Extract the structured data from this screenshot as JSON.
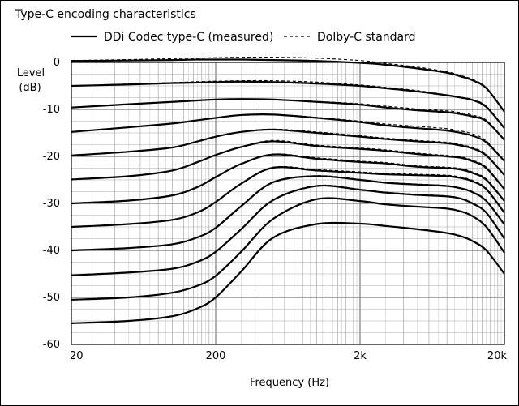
{
  "chart_data": {
    "type": "line",
    "title": "Type-C encoding characteristics",
    "xlabel": "Frequency (Hz)",
    "ylabel": [
      "Level",
      "(dB)"
    ],
    "x_scale": "log",
    "xlim": [
      20,
      20000
    ],
    "ylim": [
      -60,
      0
    ],
    "grid": true,
    "legend_placement": "top",
    "x_ticks": [
      {
        "value": 20,
        "label": "20"
      },
      {
        "value": 200,
        "label": "200"
      },
      {
        "value": 2000,
        "label": "2k"
      },
      {
        "value": 20000,
        "label": "20k"
      }
    ],
    "y_ticks": [
      {
        "value": 0,
        "label": "0"
      },
      {
        "value": -10,
        "label": "-10"
      },
      {
        "value": -20,
        "label": "-20"
      },
      {
        "value": -30,
        "label": "-30"
      },
      {
        "value": -40,
        "label": "-40"
      },
      {
        "value": -50,
        "label": "-50"
      },
      {
        "value": -60,
        "label": "-60"
      }
    ],
    "legend": [
      {
        "label": "DDi Codec type-C (measured)",
        "style": "solid"
      },
      {
        "label": "Dolby-C standard",
        "style": "dashed"
      }
    ],
    "x": [
      20,
      50,
      100,
      150,
      200,
      300,
      500,
      1000,
      2000,
      3000,
      5000,
      8000,
      10000,
      12000,
      15000,
      20000
    ],
    "series": [
      {
        "input": 0,
        "measured": [
          0.3,
          0.4,
          0.5,
          0.6,
          0.6,
          0.6,
          0.5,
          0.3,
          -0.1,
          -0.5,
          -1.3,
          -2.2,
          -3.0,
          -3.8,
          -5.5,
          -10.5
        ],
        "standard": [
          0.4,
          0.6,
          0.8,
          0.9,
          1.0,
          1.1,
          1.1,
          0.9,
          0.4,
          -0.2,
          -1.0,
          -2.0,
          -2.8,
          -3.6,
          -5.4,
          -10.5
        ]
      },
      {
        "input": -5,
        "measured": [
          -5.0,
          -4.7,
          -4.4,
          -4.3,
          -4.2,
          -4.1,
          -4.2,
          -4.5,
          -5.0,
          -5.5,
          -6.2,
          -7.0,
          -7.5,
          -8.0,
          -9.5,
          -14.0
        ],
        "standard": [
          -5.0,
          -4.6,
          -4.3,
          -4.1,
          -4.0,
          -3.9,
          -3.9,
          -4.2,
          -4.8,
          -5.3,
          -6.0,
          -6.9,
          -7.4,
          -7.9,
          -9.3,
          -14.0
        ]
      },
      {
        "input": -10,
        "measured": [
          -9.6,
          -8.9,
          -8.4,
          -8.1,
          -7.9,
          -7.8,
          -7.9,
          -8.4,
          -9.0,
          -9.6,
          -10.2,
          -10.6,
          -11.0,
          -11.5,
          -12.5,
          -16.5
        ],
        "standard": [
          -9.6,
          -8.9,
          -8.4,
          -8.1,
          -7.9,
          -7.8,
          -7.9,
          -8.3,
          -8.8,
          -9.3,
          -9.9,
          -10.3,
          -10.7,
          -11.2,
          -12.3,
          -16.5
        ]
      },
      {
        "input": -15,
        "measured": [
          -14.8,
          -13.8,
          -13.0,
          -12.3,
          -11.8,
          -11.2,
          -11.1,
          -11.8,
          -12.7,
          -13.4,
          -14.0,
          -14.5,
          -15.0,
          -15.6,
          -17.0,
          -21.0
        ],
        "standard": [
          -14.8,
          -13.8,
          -13.0,
          -12.3,
          -11.8,
          -11.2,
          -11.1,
          -11.7,
          -12.5,
          -13.1,
          -13.6,
          -14.1,
          -14.6,
          -15.2,
          -16.7,
          -21.0
        ]
      },
      {
        "input": -20,
        "measured": [
          -19.8,
          -19.0,
          -18.1,
          -16.8,
          -15.8,
          -14.8,
          -14.3,
          -15.0,
          -15.8,
          -16.3,
          -16.8,
          -17.2,
          -17.7,
          -18.3,
          -19.8,
          -24.0
        ],
        "standard": [
          -19.8,
          -19.0,
          -18.1,
          -16.8,
          -15.8,
          -14.8,
          -14.2,
          -14.8,
          -15.6,
          -16.1,
          -16.6,
          -17.0,
          -17.5,
          -18.1,
          -19.6,
          -24.0
        ]
      },
      {
        "input": -25,
        "measured": [
          -24.9,
          -24.2,
          -23.0,
          -21.2,
          -19.7,
          -18.0,
          -16.8,
          -17.8,
          -18.4,
          -18.8,
          -19.5,
          -20.0,
          -20.3,
          -21.0,
          -22.5,
          -27.0
        ],
        "standard": [
          -24.9,
          -24.2,
          -23.0,
          -21.2,
          -19.7,
          -18.0,
          -16.6,
          -17.6,
          -18.2,
          -18.6,
          -19.3,
          -19.8,
          -20.1,
          -20.8,
          -22.3,
          -27.0
        ]
      },
      {
        "input": -30,
        "measured": [
          -30.0,
          -29.4,
          -28.3,
          -26.5,
          -24.4,
          -21.6,
          -19.6,
          -20.5,
          -21.2,
          -21.5,
          -22.2,
          -22.5,
          -22.8,
          -23.5,
          -25.0,
          -29.5
        ],
        "standard": [
          -30.0,
          -29.4,
          -28.3,
          -26.5,
          -24.4,
          -21.6,
          -19.5,
          -20.3,
          -21.0,
          -21.3,
          -22.0,
          -22.3,
          -22.6,
          -23.3,
          -24.8,
          -29.5
        ]
      },
      {
        "input": -35,
        "measured": [
          -35.0,
          -34.4,
          -33.5,
          -31.9,
          -29.7,
          -25.8,
          -22.4,
          -23.0,
          -23.5,
          -23.8,
          -24.0,
          -24.2,
          -24.6,
          -25.3,
          -27.0,
          -32.0
        ],
        "standard": [
          -35.0,
          -34.4,
          -33.5,
          -31.9,
          -29.7,
          -25.8,
          -22.3,
          -22.8,
          -23.3,
          -23.6,
          -23.8,
          -24.0,
          -24.4,
          -25.1,
          -26.8,
          -32.0
        ]
      },
      {
        "input": -40,
        "measured": [
          -40.0,
          -39.5,
          -38.7,
          -37.2,
          -35.2,
          -30.6,
          -25.5,
          -24.2,
          -25.0,
          -25.6,
          -26.0,
          -26.3,
          -26.8,
          -27.6,
          -29.5,
          -34.5
        ],
        "standard": [
          -40.0,
          -39.5,
          -38.7,
          -37.2,
          -35.2,
          -30.6,
          -25.5,
          -24.1,
          -24.9,
          -25.5,
          -25.9,
          -26.2,
          -26.7,
          -27.5,
          -29.4,
          -34.5
        ]
      },
      {
        "input": -45,
        "measured": [
          -45.3,
          -44.7,
          -43.9,
          -42.4,
          -40.3,
          -35.5,
          -29.3,
          -26.3,
          -27.1,
          -27.7,
          -28.2,
          -28.5,
          -29.0,
          -30.0,
          -32.0,
          -37.5
        ],
        "standard": [
          -45.3,
          -44.7,
          -43.9,
          -42.4,
          -40.3,
          -35.5,
          -29.3,
          -26.2,
          -27.0,
          -27.6,
          -28.1,
          -28.4,
          -28.9,
          -29.9,
          -31.9,
          -37.5
        ]
      },
      {
        "input": -50,
        "measured": [
          -50.5,
          -50.0,
          -49.0,
          -47.5,
          -45.4,
          -40.3,
          -33.3,
          -29.1,
          -29.5,
          -30.2,
          -30.7,
          -31.1,
          -31.7,
          -32.7,
          -35.0,
          -40.5
        ],
        "standard": [
          -50.5,
          -50.0,
          -49.0,
          -47.5,
          -45.4,
          -40.3,
          -33.3,
          -29.1,
          -29.5,
          -30.2,
          -30.7,
          -31.1,
          -31.7,
          -32.7,
          -35.0,
          -40.5
        ]
      },
      {
        "input": -55,
        "measured": [
          -55.5,
          -55.0,
          -54.0,
          -52.3,
          -50.0,
          -44.5,
          -37.3,
          -34.4,
          -34.3,
          -34.8,
          -35.5,
          -36.3,
          -37.0,
          -38.0,
          -40.0,
          -45.0
        ],
        "standard": [
          -55.5,
          -55.0,
          -54.0,
          -52.3,
          -50.0,
          -44.5,
          -37.3,
          -34.4,
          -34.3,
          -34.8,
          -35.5,
          -36.3,
          -37.0,
          -38.0,
          -40.0,
          -45.0
        ]
      }
    ]
  }
}
